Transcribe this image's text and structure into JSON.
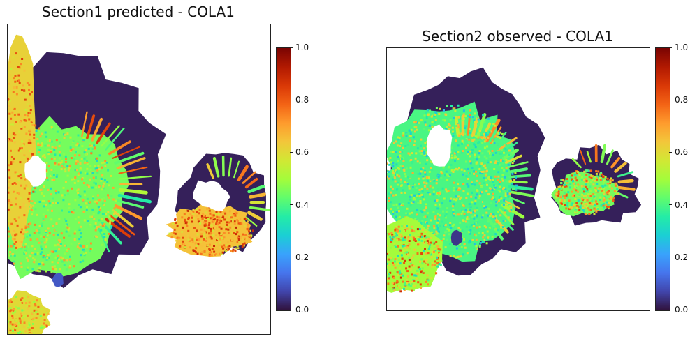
{
  "chart_data": [
    {
      "type": "heatmap",
      "title": "Section1 predicted - COLA1",
      "gene": "COLA1",
      "colormap": "turbo",
      "colorbar": {
        "vmin": 0.0,
        "vmax": 1.0,
        "ticks": [
          "0.0",
          "0.2",
          "0.4",
          "0.6",
          "0.8",
          "1.0"
        ]
      },
      "axes_ticks": "off"
    },
    {
      "type": "heatmap",
      "title": "Section2 observed - COLA1",
      "gene": "COLA1",
      "colormap": "turbo",
      "colorbar": {
        "vmin": 0.0,
        "vmax": 1.0,
        "ticks": [
          "0.0",
          "0.2",
          "0.4",
          "0.6",
          "0.8",
          "1.0"
        ]
      },
      "axes_ticks": "off"
    }
  ],
  "colors": {
    "turbo_stops": [
      "#30123b",
      "#4145ab",
      "#4675ed",
      "#39a2fc",
      "#1bcfd4",
      "#24eca6",
      "#61fc6c",
      "#a4fc3b",
      "#d1e834",
      "#f3c63a",
      "#fe9b2d",
      "#f36315",
      "#d93806",
      "#b11901",
      "#7a0402"
    ],
    "background": "#ffffff",
    "axis": "#222222"
  }
}
